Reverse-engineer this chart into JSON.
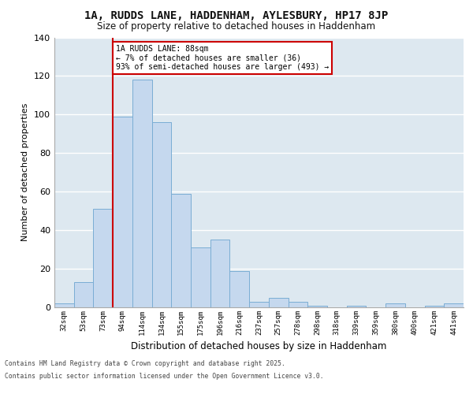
{
  "title_line1": "1A, RUDDS LANE, HADDENHAM, AYLESBURY, HP17 8JP",
  "title_line2": "Size of property relative to detached houses in Haddenham",
  "xlabel": "Distribution of detached houses by size in Haddenham",
  "ylabel": "Number of detached properties",
  "categories": [
    "32sqm",
    "53sqm",
    "73sqm",
    "94sqm",
    "114sqm",
    "134sqm",
    "155sqm",
    "175sqm",
    "196sqm",
    "216sqm",
    "237sqm",
    "257sqm",
    "278sqm",
    "298sqm",
    "318sqm",
    "339sqm",
    "359sqm",
    "380sqm",
    "400sqm",
    "421sqm",
    "441sqm"
  ],
  "values": [
    2,
    13,
    51,
    99,
    118,
    96,
    59,
    31,
    35,
    19,
    3,
    5,
    3,
    1,
    0,
    1,
    0,
    2,
    0,
    1,
    2
  ],
  "bar_color": "#c5d8ee",
  "bar_edge_color": "#7aadd4",
  "marker_color": "#cc0000",
  "annotation_title": "1A RUDDS LANE: 88sqm",
  "annotation_line1": "← 7% of detached houses are smaller (36)",
  "annotation_line2": "93% of semi-detached houses are larger (493) →",
  "annotation_box_color": "#cc0000",
  "ylim": [
    0,
    140
  ],
  "yticks": [
    0,
    20,
    40,
    60,
    80,
    100,
    120,
    140
  ],
  "background_color": "#dde8f0",
  "footer_line1": "Contains HM Land Registry data © Crown copyright and database right 2025.",
  "footer_line2": "Contains public sector information licensed under the Open Government Licence v3.0."
}
